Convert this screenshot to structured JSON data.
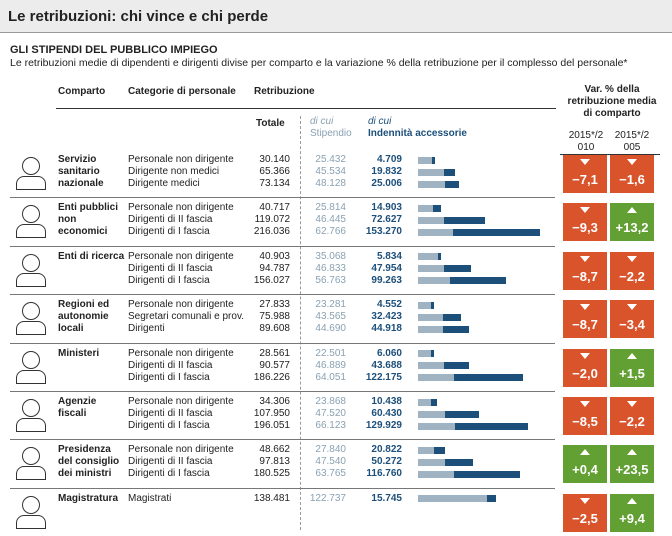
{
  "header": {
    "title": "Le retribuzioni: chi vince e chi perde"
  },
  "section": {
    "title": "GLI STIPENDI DEL PUBBLICO IMPIEGO",
    "subtitle": "Le retribuzioni medie di dipendenti e dirigenti divise per comparto e la variazione % della retribuzione per il complesso del personale*"
  },
  "columns": {
    "comparto": "Comparto",
    "categoria": "Categorie di personale",
    "retribuzione": "Retribuzione",
    "totale": "Totale",
    "dicui": "di cui",
    "stipendio": "Stipendio",
    "indennita": "Indennità accessorie",
    "var": "Var. % della retribuzione media di comparto",
    "var2010": "2015*/2010",
    "var2005": "2015*/2005"
  },
  "colors": {
    "stipendio": "#9fb3c2",
    "indennita": "#1c4f7a",
    "negative": "#d9532b",
    "positive": "#62a033"
  },
  "xlim": [
    0,
    220000
  ],
  "groups": [
    {
      "name": "Servizio sanitario nazionale",
      "rows": [
        {
          "category": "Personale non dirigente",
          "totale": {
            "value": 30140,
            "label": "30.140"
          },
          "stipendio": {
            "value": 25432,
            "label": "25.432"
          },
          "indennita": {
            "value": 4709,
            "label": "4.709"
          }
        },
        {
          "category": "Dirigente non medici",
          "totale": {
            "value": 65366,
            "label": "65.366"
          },
          "stipendio": {
            "value": 45534,
            "label": "45.534"
          },
          "indennita": {
            "value": 19832,
            "label": "19.832"
          }
        },
        {
          "category": "Dirigente medici",
          "totale": {
            "value": 73134,
            "label": "73.134"
          },
          "stipendio": {
            "value": 48128,
            "label": "48.128"
          },
          "indennita": {
            "value": 25006,
            "label": "25.006"
          }
        }
      ],
      "var": [
        {
          "value": -7.1,
          "label": "−7,1"
        },
        {
          "value": -1.6,
          "label": "−1,6"
        }
      ]
    },
    {
      "name": "Enti pubblici non economici",
      "rows": [
        {
          "category": "Personale non dirigente",
          "totale": {
            "value": 40717,
            "label": "40.717"
          },
          "stipendio": {
            "value": 25814,
            "label": "25.814"
          },
          "indennita": {
            "value": 14903,
            "label": "14.903"
          }
        },
        {
          "category": "Dirigenti di II fascia",
          "totale": {
            "value": 119072,
            "label": "119.072"
          },
          "stipendio": {
            "value": 46445,
            "label": "46.445"
          },
          "indennita": {
            "value": 72627,
            "label": "72.627"
          }
        },
        {
          "category": "Dirigenti di I fascia",
          "totale": {
            "value": 216036,
            "label": "216.036"
          },
          "stipendio": {
            "value": 62766,
            "label": "62.766"
          },
          "indennita": {
            "value": 153270,
            "label": "153.270"
          }
        }
      ],
      "var": [
        {
          "value": -9.3,
          "label": "−9,3"
        },
        {
          "value": 13.2,
          "label": "+13,2"
        }
      ]
    },
    {
      "name": "Enti di ricerca",
      "rows": [
        {
          "category": "Personale non dirigente",
          "totale": {
            "value": 40903,
            "label": "40.903"
          },
          "stipendio": {
            "value": 35068,
            "label": "35.068"
          },
          "indennita": {
            "value": 5834,
            "label": "5.834"
          }
        },
        {
          "category": "Dirigenti di II fascia",
          "totale": {
            "value": 94787,
            "label": "94.787"
          },
          "stipendio": {
            "value": 46833,
            "label": "46.833"
          },
          "indennita": {
            "value": 47954,
            "label": "47.954"
          }
        },
        {
          "category": "Dirigenti di I fascia",
          "totale": {
            "value": 156027,
            "label": "156.027"
          },
          "stipendio": {
            "value": 56763,
            "label": "56.763"
          },
          "indennita": {
            "value": 99263,
            "label": "99.263"
          }
        }
      ],
      "var": [
        {
          "value": -8.7,
          "label": "−8,7"
        },
        {
          "value": -2.2,
          "label": "−2,2"
        }
      ]
    },
    {
      "name": "Regioni ed autonomie locali",
      "rows": [
        {
          "category": "Personale non dirigente",
          "totale": {
            "value": 27833,
            "label": "27.833"
          },
          "stipendio": {
            "value": 23281,
            "label": "23.281"
          },
          "indennita": {
            "value": 4552,
            "label": "4.552"
          }
        },
        {
          "category": "Segretari comunali e prov.",
          "totale": {
            "value": 75988,
            "label": "75.988"
          },
          "stipendio": {
            "value": 43565,
            "label": "43.565"
          },
          "indennita": {
            "value": 32423,
            "label": "32.423"
          }
        },
        {
          "category": "Dirigenti",
          "totale": {
            "value": 89608,
            "label": "89.608"
          },
          "stipendio": {
            "value": 44690,
            "label": "44.690"
          },
          "indennita": {
            "value": 44918,
            "label": "44.918"
          }
        }
      ],
      "var": [
        {
          "value": -8.7,
          "label": "−8,7"
        },
        {
          "value": -3.4,
          "label": "−3,4"
        }
      ]
    },
    {
      "name": "Ministeri",
      "rows": [
        {
          "category": "Personale non dirigente",
          "totale": {
            "value": 28561,
            "label": "28.561"
          },
          "stipendio": {
            "value": 22501,
            "label": "22.501"
          },
          "indennita": {
            "value": 6060,
            "label": "6.060"
          }
        },
        {
          "category": "Dirigenti di II fascia",
          "totale": {
            "value": 90577,
            "label": "90.577"
          },
          "stipendio": {
            "value": 46889,
            "label": "46.889"
          },
          "indennita": {
            "value": 43688,
            "label": "43.688"
          }
        },
        {
          "category": "Dirigenti di I fascia",
          "totale": {
            "value": 186226,
            "label": "186.226"
          },
          "stipendio": {
            "value": 64051,
            "label": "64.051"
          },
          "indennita": {
            "value": 122175,
            "label": "122.175"
          }
        }
      ],
      "var": [
        {
          "value": -2.0,
          "label": "−2,0"
        },
        {
          "value": 1.5,
          "label": "+1,5"
        }
      ]
    },
    {
      "name": "Agenzie fiscali",
      "rows": [
        {
          "category": "Personale non dirigente",
          "totale": {
            "value": 34306,
            "label": "34.306"
          },
          "stipendio": {
            "value": 23868,
            "label": "23.868"
          },
          "indennita": {
            "value": 10438,
            "label": "10.438"
          }
        },
        {
          "category": "Dirigenti di II fascia",
          "totale": {
            "value": 107950,
            "label": "107.950"
          },
          "stipendio": {
            "value": 47520,
            "label": "47.520"
          },
          "indennita": {
            "value": 60430,
            "label": "60.430"
          }
        },
        {
          "category": "Dirigenti di I fascia",
          "totale": {
            "value": 196051,
            "label": "196.051"
          },
          "stipendio": {
            "value": 66123,
            "label": "66.123"
          },
          "indennita": {
            "value": 129929,
            "label": "129.929"
          }
        }
      ],
      "var": [
        {
          "value": -8.5,
          "label": "−8,5"
        },
        {
          "value": -2.2,
          "label": "−2,2"
        }
      ]
    },
    {
      "name": "Presidenza del consiglio dei ministri",
      "rows": [
        {
          "category": "Personale non dirigente",
          "totale": {
            "value": 48662,
            "label": "48.662"
          },
          "stipendio": {
            "value": 27840,
            "label": "27.840"
          },
          "indennita": {
            "value": 20822,
            "label": "20.822"
          }
        },
        {
          "category": "Dirigenti di II fascia",
          "totale": {
            "value": 97813,
            "label": "97.813"
          },
          "stipendio": {
            "value": 47540,
            "label": "47.540"
          },
          "indennita": {
            "value": 50272,
            "label": "50.272"
          }
        },
        {
          "category": "Dirigenti di I fascia",
          "totale": {
            "value": 180525,
            "label": "180.525"
          },
          "stipendio": {
            "value": 63765,
            "label": "63.765"
          },
          "indennita": {
            "value": 116760,
            "label": "116.760"
          }
        }
      ],
      "var": [
        {
          "value": 0.4,
          "label": "+0,4"
        },
        {
          "value": 23.5,
          "label": "+23,5"
        }
      ]
    },
    {
      "name": "Magistratura",
      "rows": [
        {
          "category": "Magistrati",
          "totale": {
            "value": 138481,
            "label": "138.481"
          },
          "stipendio": {
            "value": 122737,
            "label": "122.737"
          },
          "indennita": {
            "value": 15745,
            "label": "15.745"
          }
        }
      ],
      "var": [
        {
          "value": -2.5,
          "label": "−2,5"
        },
        {
          "value": 9.4,
          "label": "+9,4"
        }
      ]
    }
  ]
}
